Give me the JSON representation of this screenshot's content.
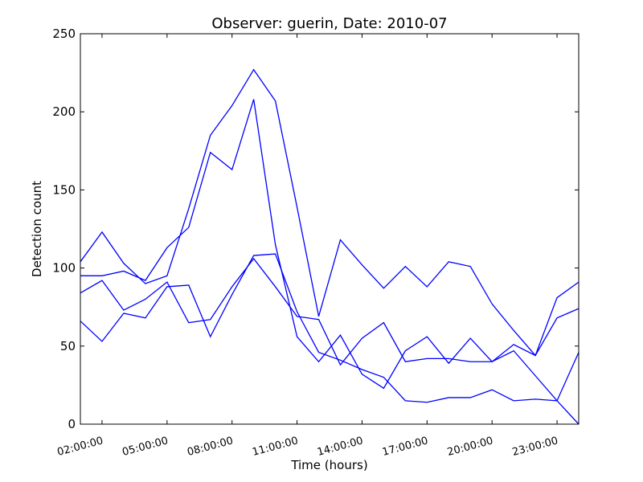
{
  "chart_data": {
    "type": "line",
    "title": "Observer: guerin, Date: 2010-07",
    "xlabel": "Time (hours)",
    "ylabel": "Detection count",
    "x_range_hours": [
      1,
      24
    ],
    "x_ticks": [
      {
        "hour": 2,
        "label": "02:00:00"
      },
      {
        "hour": 5,
        "label": "05:00:00"
      },
      {
        "hour": 8,
        "label": "08:00:00"
      },
      {
        "hour": 11,
        "label": "11:00:00"
      },
      {
        "hour": 14,
        "label": "14:00:00"
      },
      {
        "hour": 17,
        "label": "17:00:00"
      },
      {
        "hour": 20,
        "label": "20:00:00"
      },
      {
        "hour": 23,
        "label": "23:00:00"
      }
    ],
    "ylim": [
      0,
      250
    ],
    "y_ticks": [
      "0",
      "50",
      "100",
      "150",
      "200",
      "250"
    ],
    "line_color": "#0000ff",
    "grid": false,
    "x": [
      1,
      2,
      3,
      4,
      5,
      6,
      7,
      8,
      9,
      10,
      11,
      12,
      13,
      14,
      15,
      16,
      17,
      18,
      19,
      20,
      21,
      22,
      23,
      24
    ],
    "series": [
      {
        "values": [
          104,
          123,
          103,
          90,
          95,
          138,
          185,
          204,
          227,
          207,
          139,
          69,
          118,
          102,
          87,
          101,
          88,
          104,
          101,
          77,
          60,
          44,
          81,
          91
        ]
      },
      {
        "values": [
          95,
          95,
          98,
          92,
          113,
          126,
          174,
          163,
          208,
          115,
          56,
          40,
          57,
          32,
          23,
          47,
          56,
          39,
          55,
          40,
          51,
          44,
          68,
          74
        ]
      },
      {
        "values": [
          84,
          92,
          73,
          80,
          91,
          65,
          67,
          88,
          106,
          88,
          69,
          67,
          38,
          55,
          65,
          40,
          42,
          42,
          40,
          40,
          47,
          31,
          15,
          46
        ]
      },
      {
        "values": [
          66,
          53,
          71,
          68,
          88,
          89,
          56,
          83,
          108,
          109,
          72,
          46,
          41,
          35,
          30,
          15,
          14,
          17,
          17,
          22,
          15,
          16,
          15,
          0
        ]
      }
    ]
  }
}
